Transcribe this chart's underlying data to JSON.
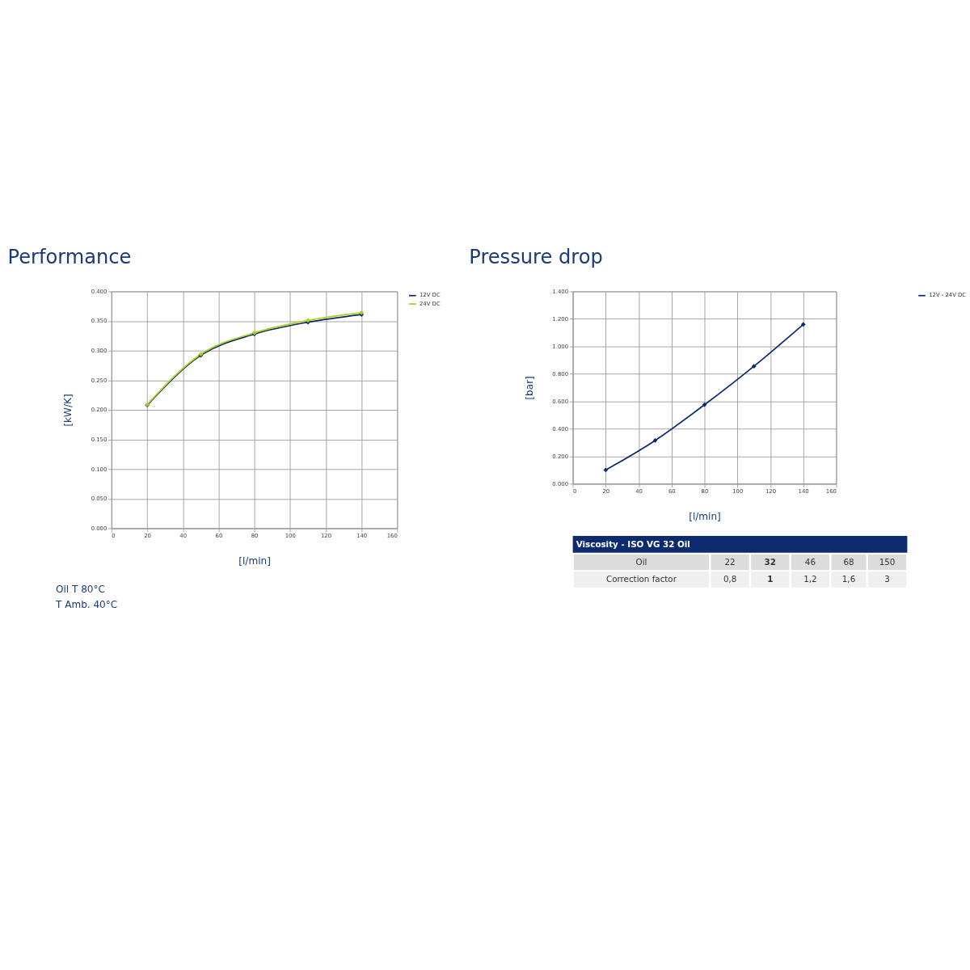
{
  "chart_data": [
    {
      "type": "line",
      "title": "Performance",
      "xlabel": "[l/min]",
      "ylabel": "[kW/K]",
      "x": [
        20,
        50,
        80,
        110,
        140
      ],
      "series": [
        {
          "name": "12V DC",
          "color": "#0d2a5c",
          "values": [
            0.208,
            0.292,
            0.328,
            0.348,
            0.361
          ]
        },
        {
          "name": "24V DC",
          "color": "#a8cf2a",
          "values": [
            0.209,
            0.294,
            0.33,
            0.351,
            0.364
          ]
        }
      ],
      "xlim": [
        0,
        160
      ],
      "xticks": [
        0,
        20,
        40,
        60,
        80,
        100,
        120,
        140,
        160
      ],
      "ylim": [
        0,
        0.4
      ],
      "yticks": [
        {
          "value": 0,
          "label": "0.000"
        },
        {
          "value": 0.05,
          "label": "0.050"
        },
        {
          "value": 0.1,
          "label": "0.100"
        },
        {
          "value": 0.15,
          "label": "0.150"
        },
        {
          "value": 0.2,
          "label": "0.200"
        },
        {
          "value": 0.25,
          "label": "0.250"
        },
        {
          "value": 0.3,
          "label": "0.300"
        },
        {
          "value": 0.35,
          "label": "0.350"
        },
        {
          "value": 0.4,
          "label": "0.400"
        }
      ],
      "grid": true,
      "legend": "right",
      "marker": "diamond",
      "annotations": [
        "Oil T 80°C",
        "T Amb. 40°C"
      ]
    },
    {
      "type": "line",
      "title": "Pressure drop",
      "xlabel": "[l/min]",
      "ylabel": "[bar]",
      "x": [
        20,
        50,
        80,
        110,
        140
      ],
      "series": [
        {
          "name": "12V - 24V DC",
          "color": "#0d2a6e",
          "values": [
            0.1,
            0.315,
            0.575,
            0.855,
            1.16
          ]
        }
      ],
      "xlim": [
        0,
        160
      ],
      "xticks": [
        0,
        20,
        40,
        60,
        80,
        100,
        120,
        140,
        160
      ],
      "ylim": [
        0,
        1.4
      ],
      "yticks": [
        {
          "value": 0,
          "label": "0.000"
        },
        {
          "value": 0.2,
          "label": "0.200"
        },
        {
          "value": 0.4,
          "label": "0.400"
        },
        {
          "value": 0.6,
          "label": "0.600"
        },
        {
          "value": 0.8,
          "label": "0.800"
        },
        {
          "value": 1.0,
          "label": "1.000"
        },
        {
          "value": 1.2,
          "label": "1.200"
        },
        {
          "value": 1.4,
          "label": "1.400"
        }
      ],
      "grid": true,
      "legend": "right",
      "marker": "diamond"
    },
    {
      "type": "other",
      "title": "Viscosity - ISO VG 32 Oil",
      "annotations": [
        "Oil",
        "22",
        "32",
        "46",
        "68",
        "150",
        "Correction factor",
        "0,8",
        "1",
        "1,2",
        "1,6",
        "3"
      ]
    }
  ]
}
